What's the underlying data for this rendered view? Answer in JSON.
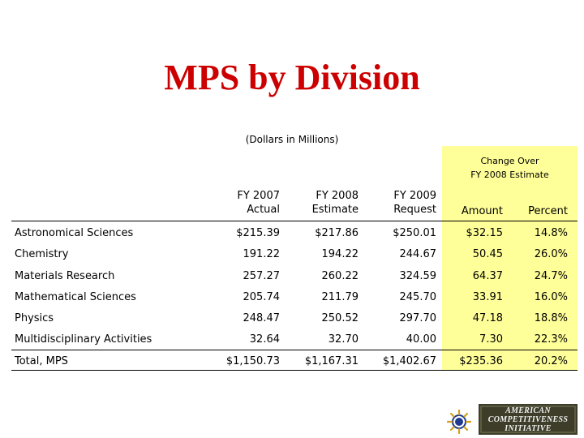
{
  "slide": {
    "title": "MPS by Division",
    "subtitle": "(Dollars in Millions)",
    "change_header": [
      "Change Over",
      "FY 2008 Estimate"
    ]
  },
  "table": {
    "headers": [
      [
        "FY 2007",
        "Actual"
      ],
      [
        "FY 2008",
        "Estimate"
      ],
      [
        "FY 2009",
        "Request"
      ],
      [
        "Amount"
      ],
      [
        "Percent"
      ]
    ],
    "rows": [
      {
        "label": "Astronomical Sciences",
        "fy2007": "$215.39",
        "fy2008": "$217.86",
        "fy2009": "$250.01",
        "amount": "$32.15",
        "percent": "14.8%"
      },
      {
        "label": "Chemistry",
        "fy2007": "191.22",
        "fy2008": "194.22",
        "fy2009": "244.67",
        "amount": "50.45",
        "percent": "26.0%"
      },
      {
        "label": "Materials Research",
        "fy2007": "257.27",
        "fy2008": "260.22",
        "fy2009": "324.59",
        "amount": "64.37",
        "percent": "24.7%"
      },
      {
        "label": "Mathematical Sciences",
        "fy2007": "205.74",
        "fy2008": "211.79",
        "fy2009": "245.70",
        "amount": "33.91",
        "percent": "16.0%"
      },
      {
        "label": "Physics",
        "fy2007": "248.47",
        "fy2008": "250.52",
        "fy2009": "297.70",
        "amount": "47.18",
        "percent": "18.8%"
      },
      {
        "label": "Multidisciplinary Activities",
        "fy2007": "32.64",
        "fy2008": "32.70",
        "fy2009": "40.00",
        "amount": "7.30",
        "percent": "22.3%"
      }
    ],
    "total": {
      "label": "Total, MPS",
      "fy2007": "$1,150.73",
      "fy2008": "$1,167.31",
      "fy2009": "$1,402.67",
      "amount": "$235.36",
      "percent": "20.2%"
    }
  },
  "logos": {
    "nsf": "nsf-logo",
    "aci": [
      "AMERICAN",
      "COMPETITIVENESS",
      "INITIATIVE"
    ]
  },
  "colors": {
    "title": "#cc0000",
    "highlight": "#ffff99",
    "aci_bg": "#3d3d29"
  }
}
